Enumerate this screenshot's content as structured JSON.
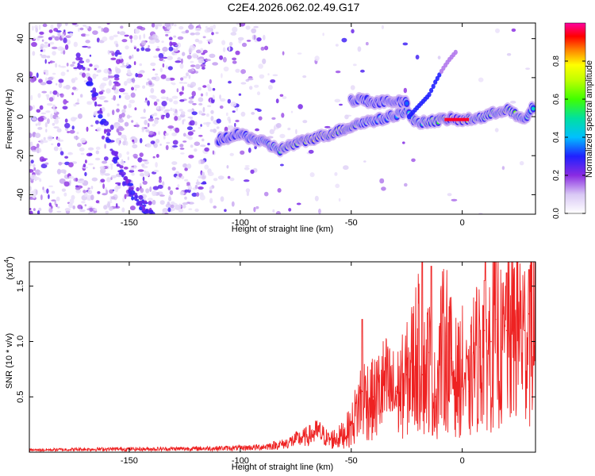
{
  "figure_title": "C2E4.2026.062.02.49.G17",
  "chart_data": [
    {
      "type": "heatmap",
      "title": "",
      "xlabel": "Height of straight line (km)",
      "ylabel": "Frequency (Hz)",
      "xlim": [
        -195,
        33
      ],
      "ylim": [
        -50,
        48
      ],
      "xticks": [
        -150,
        -100,
        -50,
        0
      ],
      "xtick_labels": [
        "-150",
        "-100",
        "-50",
        "0"
      ],
      "yticks": [
        -40,
        -20,
        0,
        20,
        40
      ],
      "ytick_labels": [
        "-40",
        "-20",
        "0",
        "20",
        "40"
      ],
      "colorbar": {
        "label": "Normalized spectral amplitude",
        "range": [
          0,
          1
        ],
        "ticks": [
          0.0,
          0.2,
          0.4,
          0.6,
          0.8
        ],
        "tick_labels": [
          "0.0",
          "0.2",
          "0.4",
          "0.6",
          "0.8"
        ]
      },
      "ridge": {
        "name": "main frequency track",
        "x": [
          -110,
          -100,
          -90,
          -82,
          -78,
          -70,
          -60,
          -50,
          -45,
          -40,
          -35,
          -30,
          -25,
          -22,
          -18,
          -12,
          -5,
          0,
          5,
          10,
          15,
          20,
          25,
          28,
          32
        ],
        "y": [
          -12,
          -9,
          -13,
          -17,
          -15,
          -12,
          -9,
          -5,
          -3,
          -2,
          -1,
          1,
          3,
          -2,
          -3,
          -2,
          -1,
          -2,
          -1,
          0,
          2,
          4,
          0,
          -2,
          5
        ],
        "amplitude": [
          0.3,
          0.35,
          0.45,
          0.55,
          0.7,
          0.75,
          0.72,
          0.68,
          0.5,
          0.45,
          0.4,
          0.45,
          0.4,
          0.45,
          0.5,
          0.6,
          0.95,
          0.95,
          0.6,
          0.55,
          0.6,
          0.7,
          0.55,
          0.5,
          0.45
        ]
      },
      "upper_branch": {
        "name": "upper frequency branch",
        "x": [
          -50,
          -45,
          -40,
          -35,
          -30,
          -25
        ],
        "y": [
          8,
          9,
          7,
          8,
          8,
          7
        ]
      },
      "spur": {
        "name": "rising spur",
        "x": [
          -24,
          -20,
          -15,
          -12,
          -9,
          -6,
          -3
        ],
        "y": [
          0,
          5,
          11,
          18,
          24,
          29,
          33
        ]
      },
      "diagonal_streak": {
        "name": "descending streak",
        "x": [
          -173,
          -166,
          -160,
          -155,
          -148,
          -140
        ],
        "y": [
          30,
          12,
          -8,
          -25,
          -40,
          -50
        ]
      }
    },
    {
      "type": "line",
      "title": "",
      "xlabel": "Height of straight line (km)",
      "ylabel": "SNR (10 * v/v)",
      "y_scale_label": "(x10",
      "y_scale_exponent": "4",
      "xlim": [
        -195,
        33
      ],
      "ylim": [
        0,
        1.72
      ],
      "xticks": [
        -150,
        -100,
        -50,
        0
      ],
      "xtick_labels": [
        "-150",
        "-100",
        "-50",
        "0"
      ],
      "yticks": [
        0.5,
        1.0,
        1.5
      ],
      "ytick_labels": [
        "0.5",
        "1.0",
        "1.5"
      ],
      "series": [
        {
          "name": "SNR",
          "color": "#ee2222",
          "x": [
            -195,
            -180,
            -160,
            -140,
            -120,
            -100,
            -90,
            -80,
            -75,
            -70,
            -65,
            -60,
            -55,
            -50,
            -45,
            -40,
            -35,
            -30,
            -25,
            -20,
            -18,
            -15,
            -12,
            -10,
            -7,
            -5,
            -2,
            0,
            3,
            5,
            8,
            10,
            13,
            15,
            18,
            20,
            23,
            25,
            28,
            30,
            33
          ],
          "values": [
            0.02,
            0.025,
            0.03,
            0.03,
            0.035,
            0.04,
            0.05,
            0.08,
            0.12,
            0.15,
            0.2,
            0.12,
            0.15,
            0.25,
            0.55,
            0.5,
            0.65,
            0.55,
            0.7,
            1.0,
            0.7,
            0.9,
            0.5,
            0.95,
            1.05,
            0.85,
            0.7,
            0.8,
            0.55,
            0.9,
            0.95,
            1.1,
            1.0,
            1.2,
            0.95,
            1.1,
            1.15,
            1.3,
            1.1,
            1.25,
            1.35
          ],
          "noise_peaks": [
            {
              "x": -45,
              "y": 1.2
            },
            {
              "x": -18,
              "y": 1.72
            },
            {
              "x": -14,
              "y": 1.68
            },
            {
              "x": 10,
              "y": 1.55
            },
            {
              "x": 20,
              "y": 1.62
            },
            {
              "x": 30,
              "y": 1.65
            }
          ]
        }
      ]
    }
  ]
}
